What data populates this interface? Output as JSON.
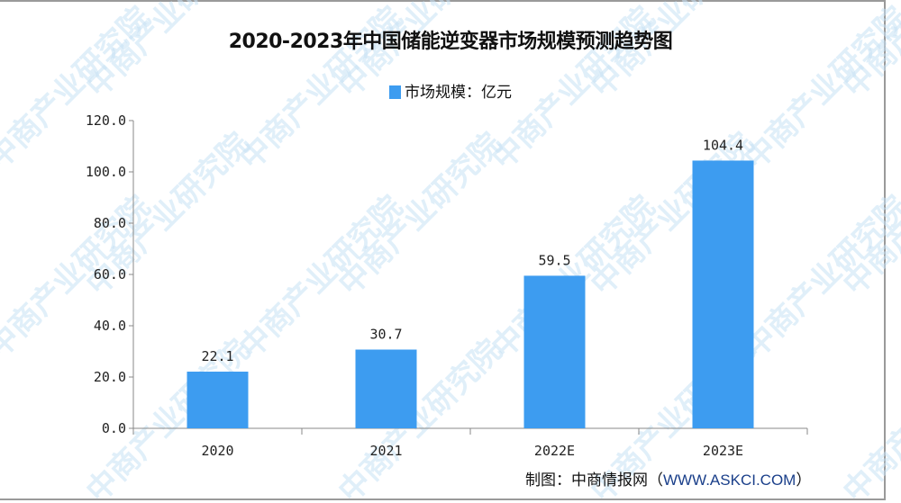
{
  "chart_data": {
    "type": "bar",
    "title": "2020-2023年中国储能逆变器市场规模预测趋势图",
    "categories": [
      "2020",
      "2021",
      "2022E",
      "2023E"
    ],
    "series": [
      {
        "name": "市场规模：亿元",
        "values": [
          22.1,
          30.7,
          59.5,
          104.4
        ],
        "color": "#3d9cf0"
      }
    ],
    "data_labels": [
      "22.1",
      "30.7",
      "59.5",
      "104.4"
    ],
    "yticks": [
      "0.0",
      "20.0",
      "40.0",
      "60.0",
      "80.0",
      "100.0",
      "120.0"
    ],
    "ylim": [
      0,
      120
    ],
    "grid": false,
    "legend": "top-center"
  },
  "source": {
    "prefix": "制图：中商情报网（",
    "url": "WWW.ASKCI.COM",
    "suffix": "）"
  },
  "watermark": "中商产业研究院"
}
